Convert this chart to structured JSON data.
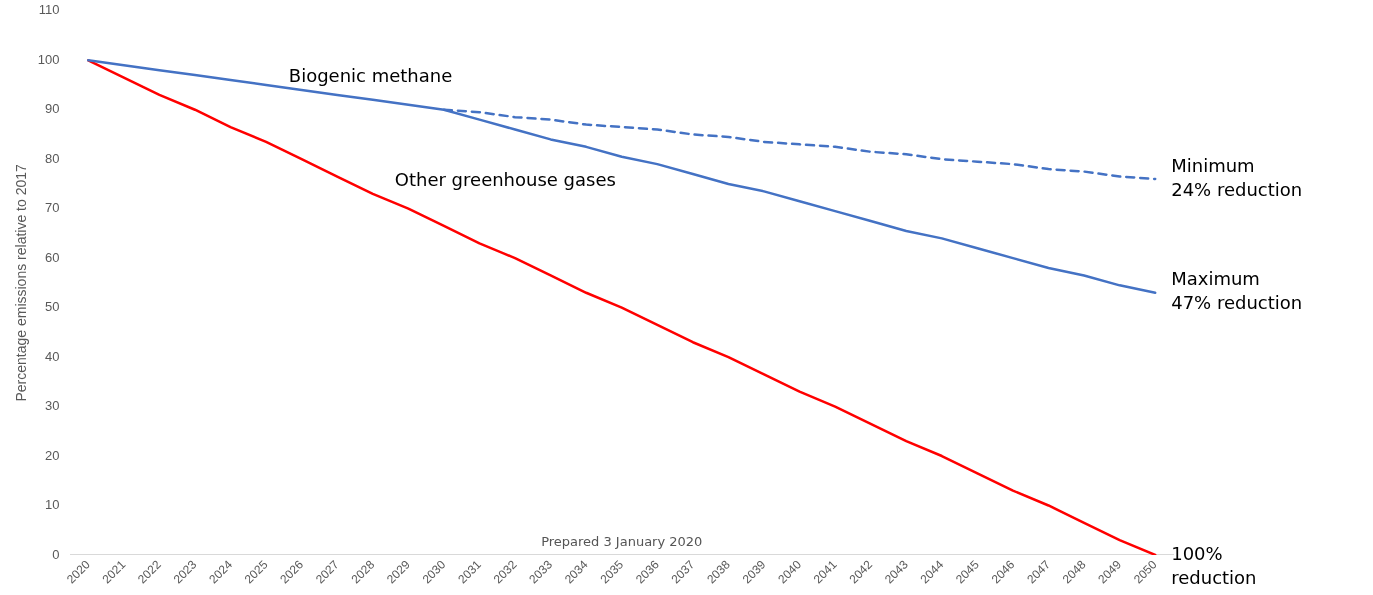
{
  "chart_data": {
    "type": "line",
    "ylabel": "Percentage emissions relative to 2017",
    "categories": [
      "2020",
      "2021",
      "2022",
      "2023",
      "2024",
      "2025",
      "2026",
      "2027",
      "2028",
      "2029",
      "2030",
      "2031",
      "2032",
      "2033",
      "2034",
      "2035",
      "2036",
      "2037",
      "2038",
      "2039",
      "2040",
      "2041",
      "2042",
      "2043",
      "2044",
      "2045",
      "2046",
      "2047",
      "2048",
      "2049",
      "2050"
    ],
    "series": [
      {
        "name": "Biogenic methane",
        "color": "#4472c4",
        "values": [
          100,
          99,
          98,
          97,
          96,
          95,
          94,
          93,
          92,
          91,
          90,
          88,
          86,
          84,
          82.5,
          80.5,
          79,
          77,
          75,
          73.5,
          71.5,
          69.5,
          67.5,
          65.5,
          64,
          62,
          60,
          58,
          56.5,
          54.5,
          53
        ]
      },
      {
        "color": "#4472c4",
        "line_style": "dashed",
        "values": [
          null,
          null,
          null,
          null,
          null,
          null,
          null,
          null,
          null,
          null,
          90,
          89.5,
          88.5,
          88,
          87,
          86.5,
          86,
          85,
          84.5,
          83.5,
          83,
          82.5,
          81.5,
          81,
          80,
          79.5,
          79,
          78,
          77.5,
          76.5,
          76
        ]
      },
      {
        "name": "Other greenhouse gases",
        "color": "#ff0000",
        "values": [
          100,
          96.5,
          93,
          90,
          86.5,
          83.5,
          80,
          76.5,
          73,
          70,
          66.5,
          63,
          60,
          56.5,
          53,
          50,
          46.5,
          43,
          40,
          36.5,
          33,
          30,
          26.5,
          23,
          20,
          16.5,
          13,
          10,
          6.5,
          3,
          0
        ]
      }
    ],
    "ylim": [
      0,
      110
    ],
    "yticks": [
      0,
      10,
      20,
      30,
      40,
      50,
      60,
      70,
      80,
      90,
      100,
      110
    ],
    "grid": false,
    "legend": false,
    "marker": "none",
    "line_style": "solid",
    "annotations": [
      {
        "text": "Minimum\n24% reduction",
        "x": "2050",
        "y": 76
      },
      {
        "text": "Maximum\n47% reduction",
        "x": "2050",
        "y": 53
      },
      {
        "text": "100%\nreduction",
        "x": "2050",
        "y": 0
      },
      "Prepared 3 January 2020"
    ]
  }
}
